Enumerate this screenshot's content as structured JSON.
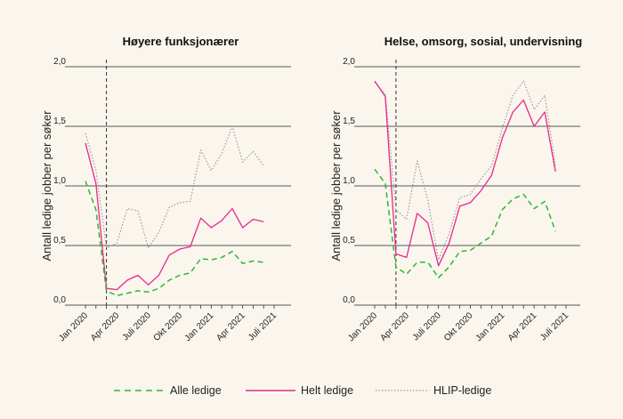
{
  "colors": {
    "background": "#faf6ee",
    "alle": "#2eb82e",
    "helt": "#e8288c",
    "hlip": "#999999",
    "grid": "#555555",
    "marker": "#444444"
  },
  "chart_data": [
    {
      "type": "line",
      "title": "Høyere funksjonærer",
      "ylabel": "Antall ledige jobber per søker",
      "xlabel": "",
      "ylim": [
        0,
        2.0
      ],
      "yticks": [
        0,
        0.5,
        1.0,
        1.5,
        2.0
      ],
      "ytick_labels": [
        "0,0",
        "0,5",
        "1,0",
        "1,5",
        "2,0"
      ],
      "x_months": [
        "2020-01",
        "2020-02",
        "2020-03",
        "2020-04",
        "2020-05",
        "2020-06",
        "2020-07",
        "2020-08",
        "2020-09",
        "2020-10",
        "2020-11",
        "2020-12",
        "2021-01",
        "2021-02",
        "2021-03",
        "2021-04",
        "2021-05",
        "2021-06",
        "2021-07"
      ],
      "xtick_labels": [
        "Jan 2020",
        "Apr 2020",
        "Juli 2020",
        "Okt 2020",
        "Jan 2021",
        "Apr 2021",
        "Juli 2021"
      ],
      "xtick_months": [
        "2020-01",
        "2020-04",
        "2020-07",
        "2020-10",
        "2021-01",
        "2021-04",
        "2021-07"
      ],
      "vline_x": "2020-03",
      "grid_y": true,
      "series": [
        {
          "name": "Alle ledige",
          "key": "alle",
          "x": [
            "2020-01",
            "2020-02",
            "2020-03",
            "2020-04",
            "2020-05",
            "2020-06",
            "2020-07",
            "2020-08",
            "2020-09",
            "2020-10",
            "2020-11",
            "2020-12",
            "2021-01",
            "2021-02",
            "2021-03",
            "2021-04",
            "2021-05",
            "2021-06"
          ],
          "values": [
            1.04,
            0.8,
            0.12,
            0.08,
            0.1,
            0.12,
            0.11,
            0.14,
            0.21,
            0.25,
            0.27,
            0.39,
            0.38,
            0.4,
            0.45,
            0.35,
            0.37,
            0.36
          ]
        },
        {
          "name": "Helt ledige",
          "key": "helt",
          "x": [
            "2020-01",
            "2020-02",
            "2020-03",
            "2020-04",
            "2020-05",
            "2020-06",
            "2020-07",
            "2020-08",
            "2020-09",
            "2020-10",
            "2020-11",
            "2020-12",
            "2021-01",
            "2021-02",
            "2021-03",
            "2021-04",
            "2021-05",
            "2021-06"
          ],
          "values": [
            1.36,
            1.02,
            0.14,
            0.13,
            0.21,
            0.25,
            0.17,
            0.25,
            0.42,
            0.47,
            0.49,
            0.73,
            0.65,
            0.71,
            0.81,
            0.65,
            0.72,
            0.7
          ]
        },
        {
          "name": "HLIP-ledige",
          "key": "hlip",
          "x": [
            "2020-01",
            "2020-02",
            "2020-03",
            "2020-04",
            "2020-05",
            "2020-06",
            "2020-07",
            "2020-08",
            "2020-09",
            "2020-10",
            "2020-11",
            "2020-12",
            "2021-01",
            "2021-02",
            "2021-03",
            "2021-04",
            "2021-05",
            "2021-06"
          ],
          "values": [
            1.44,
            1.13,
            0.48,
            0.52,
            0.81,
            0.79,
            0.48,
            0.61,
            0.82,
            0.86,
            0.87,
            1.3,
            1.13,
            1.27,
            1.5,
            1.2,
            1.29,
            1.17
          ]
        }
      ]
    },
    {
      "type": "line",
      "title": "Helse, omsorg, sosial, undervisning",
      "ylabel": "Antall ledige jobber per søker",
      "xlabel": "",
      "ylim": [
        0,
        2.0
      ],
      "yticks": [
        0,
        0.5,
        1.0,
        1.5,
        2.0
      ],
      "ytick_labels": [
        "0,0",
        "0,5",
        "1,0",
        "1,5",
        "2,0"
      ],
      "x_months": [
        "2020-01",
        "2020-02",
        "2020-03",
        "2020-04",
        "2020-05",
        "2020-06",
        "2020-07",
        "2020-08",
        "2020-09",
        "2020-10",
        "2020-11",
        "2020-12",
        "2021-01",
        "2021-02",
        "2021-03",
        "2021-04",
        "2021-05",
        "2021-06",
        "2021-07"
      ],
      "xtick_labels": [
        "Jan 2020",
        "Apr 2020",
        "Juli 2020",
        "Okt 2020",
        "Jan 2021",
        "Apr 2021",
        "Juli 2021"
      ],
      "xtick_months": [
        "2020-01",
        "2020-04",
        "2020-07",
        "2020-10",
        "2021-01",
        "2021-04",
        "2021-07"
      ],
      "vline_x": "2020-03",
      "grid_y": true,
      "series": [
        {
          "name": "Alle ledige",
          "key": "alle",
          "x": [
            "2020-01",
            "2020-02",
            "2020-03",
            "2020-04",
            "2020-05",
            "2020-06",
            "2020-07",
            "2020-08",
            "2020-09",
            "2020-10",
            "2020-11",
            "2020-12",
            "2021-01",
            "2021-02",
            "2021-03",
            "2021-04",
            "2021-05",
            "2021-06"
          ],
          "values": [
            1.14,
            1.02,
            0.32,
            0.26,
            0.36,
            0.36,
            0.23,
            0.32,
            0.45,
            0.46,
            0.52,
            0.58,
            0.8,
            0.89,
            0.93,
            0.81,
            0.87,
            0.62
          ]
        },
        {
          "name": "Helt ledige",
          "key": "helt",
          "x": [
            "2020-01",
            "2020-02",
            "2020-03",
            "2020-04",
            "2020-05",
            "2020-06",
            "2020-07",
            "2020-08",
            "2020-09",
            "2020-10",
            "2020-11",
            "2020-12",
            "2021-01",
            "2021-02",
            "2021-03",
            "2021-04",
            "2021-05",
            "2021-06"
          ],
          "values": [
            1.88,
            1.75,
            0.43,
            0.4,
            0.77,
            0.69,
            0.33,
            0.52,
            0.83,
            0.86,
            0.96,
            1.09,
            1.4,
            1.62,
            1.72,
            1.5,
            1.62,
            1.12
          ]
        },
        {
          "name": "HLIP-ledige",
          "key": "hlip",
          "x": [
            "2020-01",
            "2020-02",
            "2020-03",
            "2020-04",
            "2020-05",
            "2020-06",
            "2020-07",
            "2020-08",
            "2020-09",
            "2020-10",
            "2020-11",
            "2020-12",
            "2021-01",
            "2021-02",
            "2021-03",
            "2021-04",
            "2021-05",
            "2021-06"
          ],
          "values": [
            1.87,
            1.77,
            0.8,
            0.72,
            1.21,
            0.88,
            0.38,
            0.6,
            0.9,
            0.93,
            1.06,
            1.17,
            1.48,
            1.76,
            1.88,
            1.64,
            1.76,
            1.17
          ]
        }
      ]
    }
  ],
  "legend": {
    "placement": "bottom",
    "items": [
      {
        "key": "alle",
        "label": "Alle ledige"
      },
      {
        "key": "helt",
        "label": "Helt ledige"
      },
      {
        "key": "hlip",
        "label": "HLIP-ledige"
      }
    ]
  }
}
